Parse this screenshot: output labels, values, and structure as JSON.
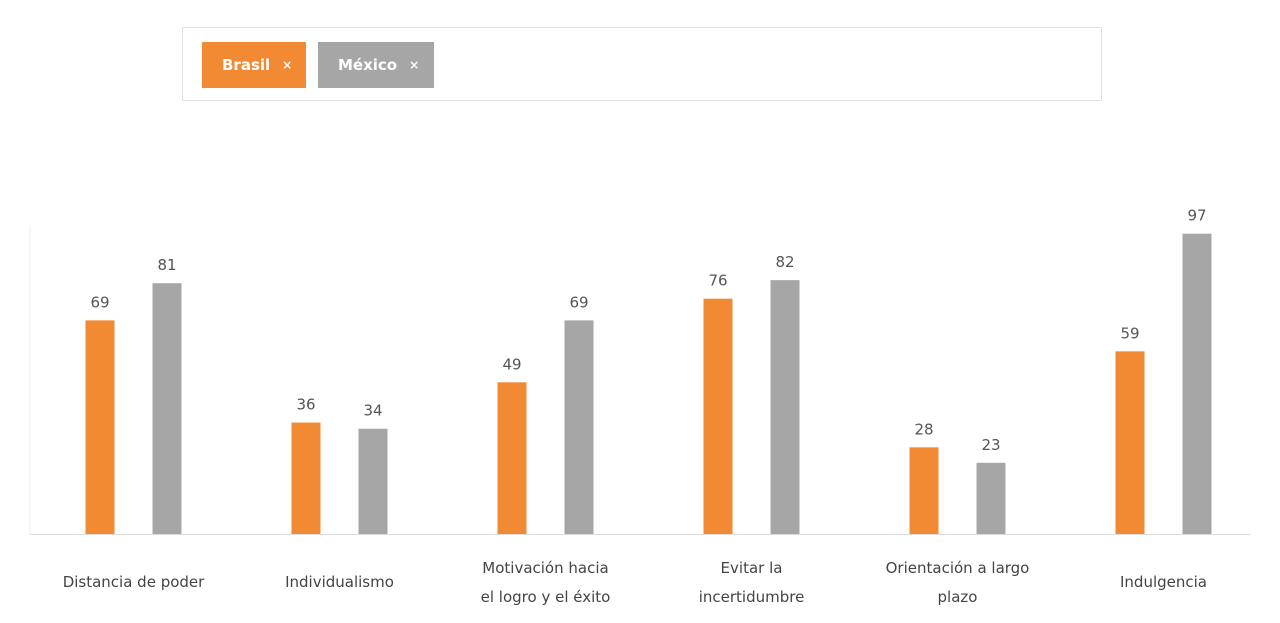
{
  "filters": {
    "chips": [
      {
        "label": "Brasil",
        "remove_icon": "×",
        "color": "#F28A33"
      },
      {
        "label": "México",
        "remove_icon": "×",
        "color": "#A6A6A6"
      }
    ]
  },
  "chart_data": {
    "type": "bar",
    "categories": [
      [
        "Distancia de poder"
      ],
      [
        "Individualismo"
      ],
      [
        "Motivación hacia",
        "el logro y el éxito"
      ],
      [
        "Evitar la",
        "incertidumbre"
      ],
      [
        "Orientación a largo",
        "plazo"
      ],
      [
        "Indulgencia"
      ]
    ],
    "series": [
      {
        "name": "Brasil",
        "color": "#F28A33",
        "values": [
          69,
          36,
          49,
          76,
          28,
          59
        ]
      },
      {
        "name": "México",
        "color": "#A6A6A6",
        "values": [
          81,
          34,
          69,
          82,
          23,
          97
        ]
      }
    ],
    "title": "",
    "xlabel": "",
    "ylabel": "",
    "ylim": [
      0,
      100
    ],
    "grid": false,
    "legend": "top"
  }
}
